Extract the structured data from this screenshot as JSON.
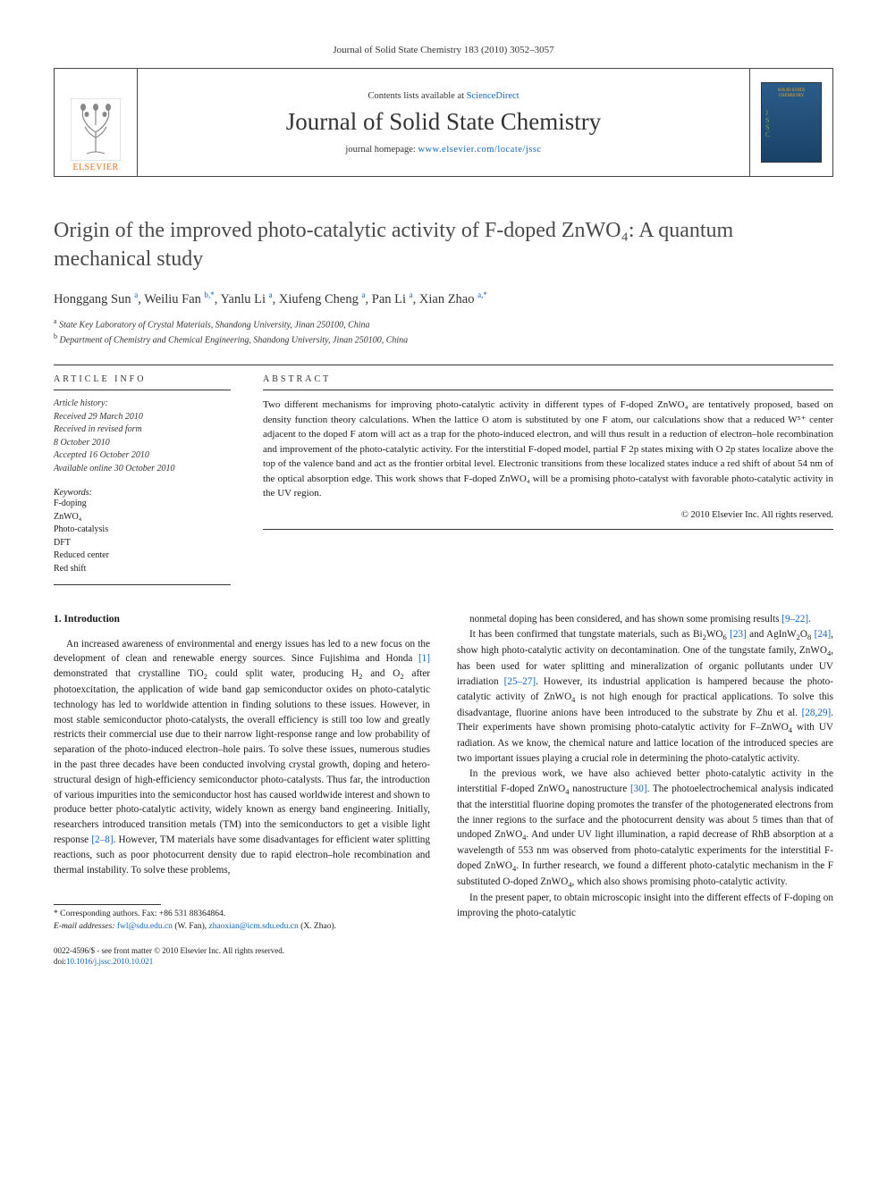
{
  "journal_ref": "Journal of Solid State Chemistry 183 (2010) 3052–3057",
  "header": {
    "contents_prefix": "Contents lists available at ",
    "contents_link": "ScienceDirect",
    "journal_name": "Journal of Solid State Chemistry",
    "homepage_prefix": "journal homepage: ",
    "homepage_url": "www.elsevier.com/locate/jssc",
    "publisher": "ELSEVIER",
    "cover_title": "SOLID STATE CHEMISTRY",
    "cover_letters": "J\nS\nS\nC"
  },
  "title": "Origin of the improved photo-catalytic activity of F-doped ZnWO₄: A quantum mechanical study",
  "authors_html": "Honggang Sun <sup>a</sup>, Weiliu Fan <sup>b,*</sup>, Yanlu Li <sup>a</sup>, Xiufeng Cheng <sup>a</sup>, Pan Li <sup>a</sup>, Xian Zhao <sup>a,*</sup>",
  "affiliations": [
    {
      "sup": "a",
      "text": "State Key Laboratory of Crystal Materials, Shandong University, Jinan 250100, China"
    },
    {
      "sup": "b",
      "text": "Department of Chemistry and Chemical Engineering, Shandong University, Jinan 250100, China"
    }
  ],
  "meta": {
    "info_head": "ARTICLE INFO",
    "abs_head": "ABSTRACT",
    "history_label": "Article history:",
    "history": [
      "Received 29 March 2010",
      "Received in revised form",
      "8 October 2010",
      "Accepted 16 October 2010",
      "Available online 30 October 2010"
    ],
    "keywords_label": "Keywords:",
    "keywords": [
      "F-doping",
      "ZnWO₄",
      "Photo-catalysis",
      "DFT",
      "Reduced center",
      "Red shift"
    ]
  },
  "abstract": "Two different mechanisms for improving photo-catalytic activity in different types of F-doped ZnWO₄ are tentatively proposed, based on density function theory calculations. When the lattice O atom is substituted by one F atom, our calculations show that a reduced W⁵⁺ center adjacent to the doped F atom will act as a trap for the photo-induced electron, and will thus result in a reduction of electron–hole recombination and improvement of the photo-catalytic activity. For the interstitial F-doped model, partial F 2p states mixing with O 2p states localize above the top of the valence band and act as the frontier orbital level. Electronic transitions from these localized states induce a red shift of about 54 nm of the optical absorption edge. This work shows that F-doped ZnWO₄ will be a promising photo-catalyst with favorable photo-catalytic activity in the UV region.",
  "copyright": "© 2010 Elsevier Inc. All rights reserved.",
  "section_head": "1. Introduction",
  "body": {
    "col1": [
      "An increased awareness of environmental and energy issues has led to a new focus on the development of clean and renewable energy sources. Since Fujishima and Honda [1] demonstrated that crystalline TiO₂ could split water, producing H₂ and O₂ after photoexcitation, the application of wide band gap semiconductor oxides on photo-catalytic technology has led to worldwide attention in finding solutions to these issues. However, in most stable semiconductor photo-catalysts, the overall efficiency is still too low and greatly restricts their commercial use due to their narrow light-response range and low probability of separation of the photo-induced electron–hole pairs. To solve these issues, numerous studies in the past three decades have been conducted involving crystal growth, doping and hetero-structural design of high-efficiency semiconductor photo-catalysts. Thus far, the introduction of various impurities into the semiconductor host has caused worldwide interest and shown to produce better photo-catalytic activity, widely known as energy band engineering. Initially, researchers introduced transition metals (TM) into the semiconductors to get a visible light response [2–8]. However, TM materials have some disadvantages for efficient water splitting reactions, such as poor photocurrent density due to rapid electron–hole recombination and thermal instability. To solve these problems,"
    ],
    "col2": [
      "nonmetal doping has been considered, and has shown some promising results [9–22].",
      "It has been confirmed that tungstate materials, such as Bi₂WO₆ [23] and AgInW₂O₈ [24], show high photo-catalytic activity on decontamination. One of the tungstate family, ZnWO₄, has been used for water splitting and mineralization of organic pollutants under UV irradiation [25–27]. However, its industrial application is hampered because the photo-catalytic activity of ZnWO₄ is not high enough for practical applications. To solve this disadvantage, fluorine anions have been introduced to the substrate by Zhu et al. [28,29]. Their experiments have shown promising photo-catalytic activity for F–ZnWO₄ with UV radiation. As we know, the chemical nature and lattice location of the introduced species are two important issues playing a crucial role in determining the photo-catalytic activity.",
      "In the previous work, we have also achieved better photo-catalytic activity in the interstitial F-doped ZnWO₄ nanostructure [30]. The photoelectrochemical analysis indicated that the interstitial fluorine doping promotes the transfer of the photogenerated electrons from the inner regions to the surface and the photocurrent density was about 5 times than that of undoped ZnWO₄. And under UV light illumination, a rapid decrease of RhB absorption at a wavelength of 553 nm was observed from photo-catalytic experiments for the interstitial F-doped ZnWO₄. In further research, we found a different photo-catalytic mechanism in the F substituted O-doped ZnWO₄, which also shows promising photo-catalytic activity.",
      "In the present paper, to obtain microscopic insight into the different effects of F-doping on improving the photo-catalytic"
    ]
  },
  "footnotes": {
    "corr": "* Corresponding authors. Fax: +86 531 88364864.",
    "email_label": "E-mail addresses: ",
    "emails": "fwl@sdu.edu.cn (W. Fan), zhaoxian@icm.sdu.edu.cn (X. Zhao)."
  },
  "bottom": {
    "issn": "0022-4596/$ - see front matter © 2010 Elsevier Inc. All rights reserved.",
    "doi_label": "doi:",
    "doi": "10.1016/j.jssc.2010.10.021"
  },
  "colors": {
    "link": "#1566c0",
    "elsevier_orange": "#e87722",
    "text": "#1a1a1a",
    "gray": "#4a4a4a"
  }
}
